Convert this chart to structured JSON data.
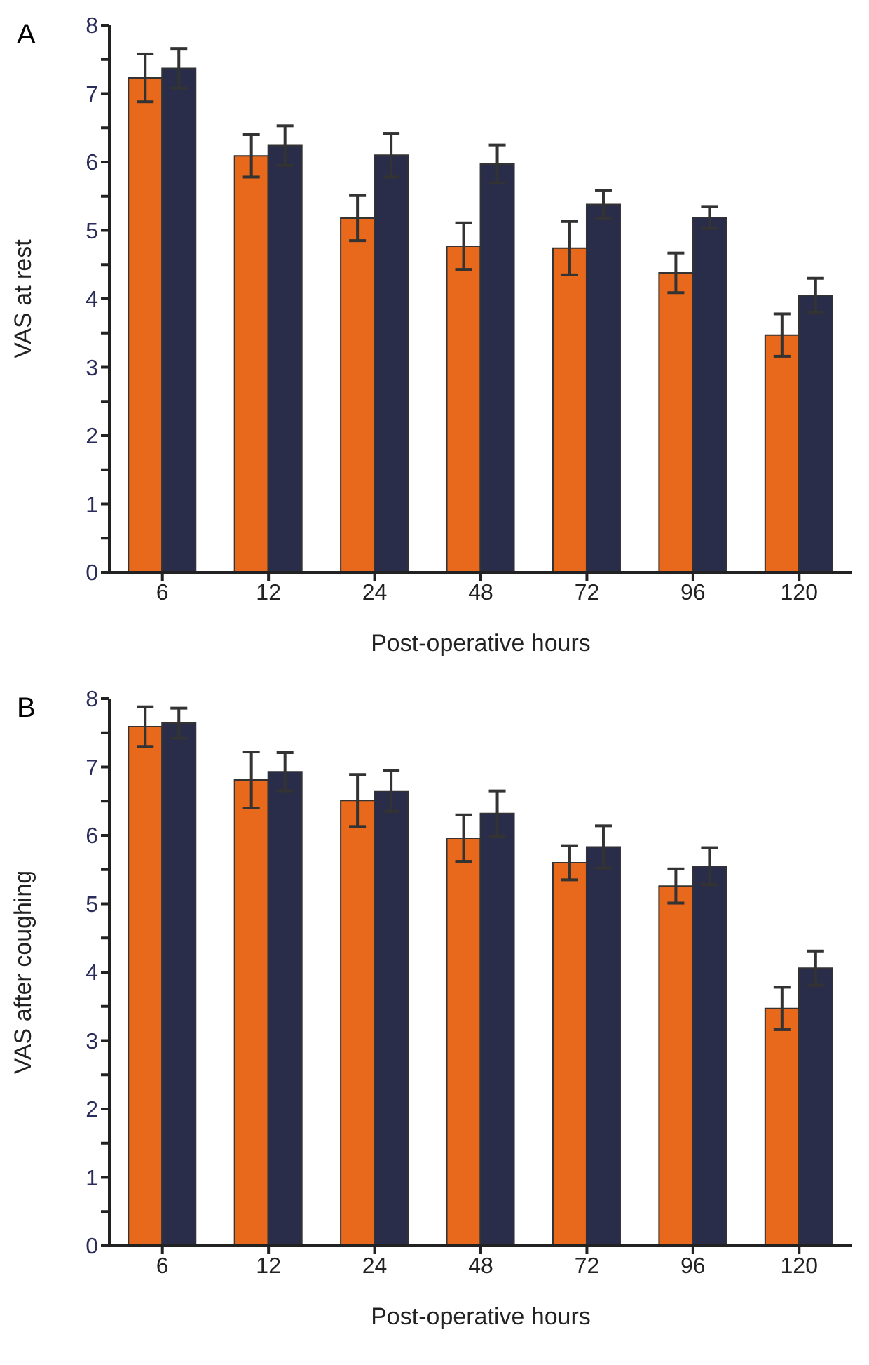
{
  "chart_data": [
    {
      "type": "bar",
      "title": "A",
      "xlabel": "Post-operative hours",
      "ylabel": "VAS at rest",
      "categories": [
        "6",
        "12",
        "24",
        "48",
        "72",
        "96",
        "120"
      ],
      "series": [
        {
          "color": "#e8681c",
          "values": [
            7.23,
            6.09,
            5.18,
            4.77,
            4.74,
            4.38,
            3.47
          ],
          "errors": [
            0.35,
            0.31,
            0.33,
            0.34,
            0.39,
            0.29,
            0.31
          ]
        },
        {
          "color": "#2a2d4a",
          "values": [
            7.37,
            6.24,
            6.1,
            5.97,
            5.38,
            5.19,
            4.05
          ],
          "errors": [
            0.29,
            0.29,
            0.32,
            0.28,
            0.2,
            0.16,
            0.25
          ]
        }
      ],
      "ylim": [
        0,
        8
      ],
      "yticks": [
        0,
        {
          "value": 0.5,
          "label": null
        },
        1,
        {
          "value": 1.5,
          "label": null
        },
        2,
        {
          "value": 2.5,
          "label": null
        },
        3,
        {
          "value": 3.5,
          "label": null
        },
        4,
        {
          "value": 4.5,
          "label": null
        },
        5,
        {
          "value": 5.5,
          "label": null
        },
        6,
        {
          "value": 6.5,
          "label": null
        },
        7,
        {
          "value": 7.5,
          "label": null
        },
        8
      ],
      "grid": false,
      "legend": false
    },
    {
      "type": "bar",
      "title": "B",
      "xlabel": "Post-operative hours",
      "ylabel": "VAS after coughing",
      "categories": [
        "6",
        "12",
        "24",
        "48",
        "72",
        "96",
        "120"
      ],
      "series": [
        {
          "color": "#e8681c",
          "values": [
            7.59,
            6.81,
            6.51,
            5.96,
            5.6,
            5.26,
            3.47
          ],
          "errors": [
            0.29,
            0.41,
            0.38,
            0.34,
            0.25,
            0.25,
            0.31
          ]
        },
        {
          "color": "#2a2d4a",
          "values": [
            7.64,
            6.93,
            6.65,
            6.32,
            5.83,
            5.55,
            4.06
          ],
          "errors": [
            0.22,
            0.28,
            0.3,
            0.33,
            0.31,
            0.27,
            0.25
          ]
        }
      ],
      "ylim": [
        0,
        8
      ],
      "yticks": [
        0,
        {
          "value": 0.5,
          "label": null
        },
        1,
        {
          "value": 1.5,
          "label": null
        },
        2,
        {
          "value": 2.5,
          "label": null
        },
        3,
        {
          "value": 3.5,
          "label": null
        },
        4,
        {
          "value": 4.5,
          "label": null
        },
        5,
        {
          "value": 5.5,
          "label": null
        },
        6,
        {
          "value": 6.5,
          "label": null
        },
        7,
        {
          "value": 7.5,
          "label": null
        },
        8
      ],
      "grid": false,
      "legend": false
    }
  ]
}
